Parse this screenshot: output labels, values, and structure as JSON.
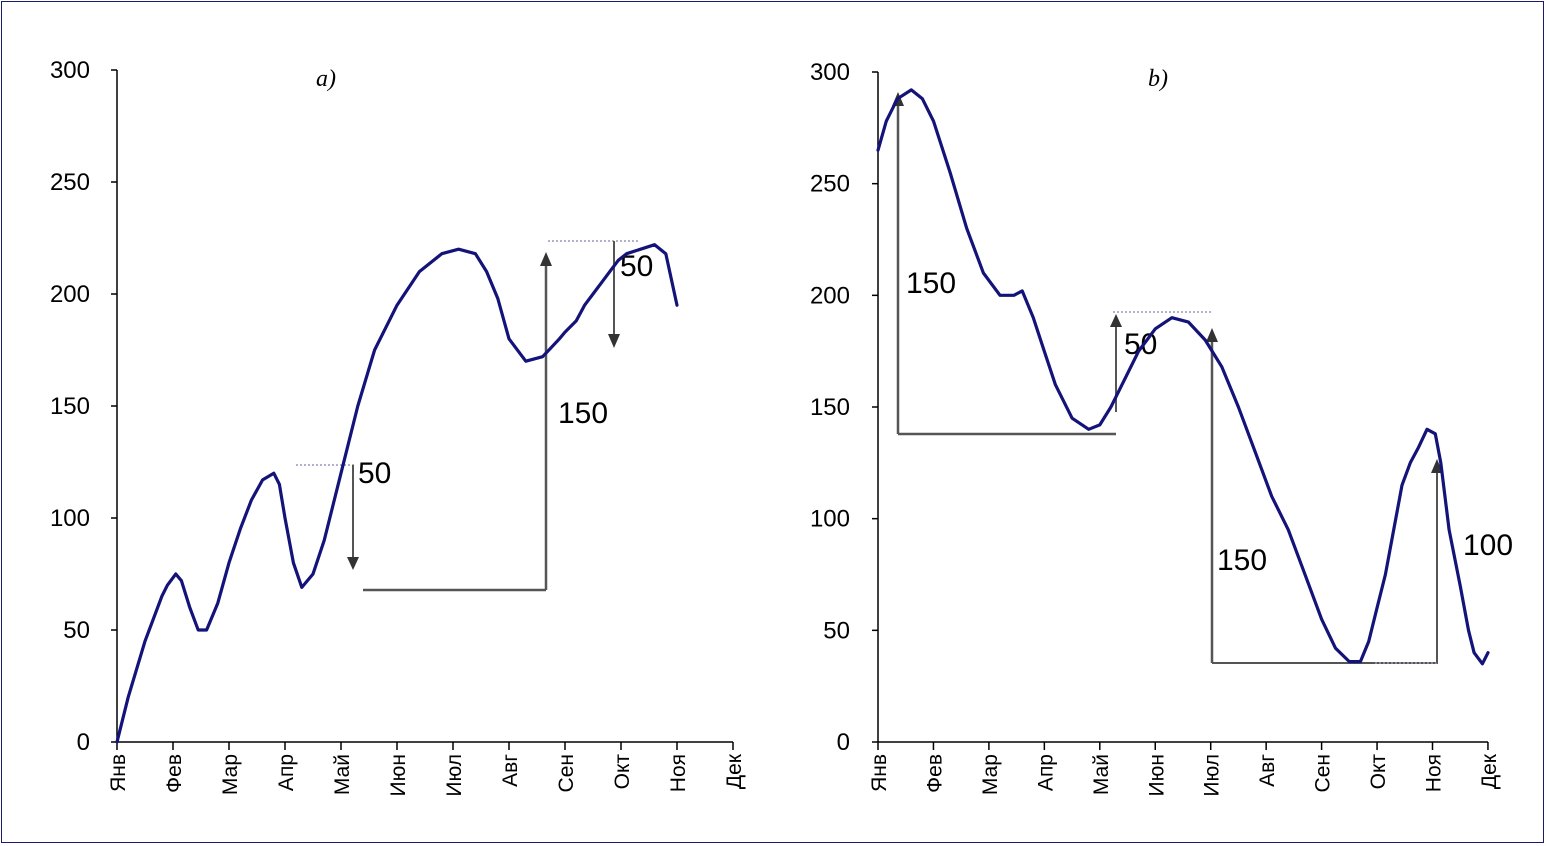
{
  "colors": {
    "line": "#13137a",
    "annotation": "#555555",
    "guide": "#9999bb",
    "frame": "#1a1a6e"
  },
  "chart_data": [
    {
      "type": "line",
      "title": "a)",
      "xlabel": "",
      "ylabel": "",
      "categories": [
        "Янв",
        "Фев",
        "Мар",
        "Апр",
        "Май",
        "Июн",
        "Июл",
        "Авг",
        "Сен",
        "Окт",
        "Ноя",
        "Дек"
      ],
      "ylim": [
        0,
        300
      ],
      "yticks": [
        "0",
        "50",
        "100",
        "150",
        "200",
        "250",
        "300"
      ],
      "grid": false,
      "series": [
        {
          "x": [
            0,
            0.2,
            0.5,
            0.8,
            0.9,
            1.05,
            1.15,
            1.3,
            1.45,
            1.6,
            1.8,
            2.0,
            2.2,
            2.4,
            2.6,
            2.8,
            2.9,
            3.0,
            3.15,
            3.3,
            3.5,
            3.7,
            4.0,
            4.3,
            4.6,
            5.0,
            5.4,
            5.8,
            6.1,
            6.4,
            6.6,
            6.8,
            7.0,
            7.3,
            7.6,
            7.75,
            7.9,
            8.0,
            8.2,
            8.35,
            8.5,
            8.65,
            8.8,
            8.95,
            9.1,
            9.35,
            9.6,
            9.8,
            10.0
          ],
          "values": [
            0,
            20,
            45,
            65,
            70,
            75,
            72,
            60,
            50,
            50,
            62,
            80,
            95,
            108,
            117,
            120,
            115,
            100,
            80,
            69,
            75,
            90,
            120,
            150,
            175,
            195,
            210,
            218,
            220,
            218,
            210,
            198,
            180,
            170,
            172,
            176,
            180,
            183,
            188,
            195,
            200,
            205,
            210,
            215,
            218,
            220,
            222,
            218,
            195
          ]
        }
      ],
      "annotations": [
        "50",
        "150",
        "50"
      ]
    },
    {
      "type": "line",
      "title": "b)",
      "xlabel": "",
      "ylabel": "",
      "categories": [
        "Янв",
        "Фев",
        "Мар",
        "Апр",
        "Май",
        "Июн",
        "Июл",
        "Авг",
        "Сен",
        "Окт",
        "Ноя",
        "Дек"
      ],
      "ylim": [
        0,
        300
      ],
      "yticks": [
        "0",
        "50",
        "100",
        "150",
        "200",
        "250",
        "300"
      ],
      "grid": false,
      "series": [
        {
          "x": [
            0,
            0.15,
            0.35,
            0.6,
            0.8,
            1.0,
            1.3,
            1.6,
            1.9,
            2.2,
            2.45,
            2.6,
            2.8,
            3.0,
            3.2,
            3.5,
            3.8,
            4.0,
            4.2,
            4.4,
            4.7,
            5.0,
            5.3,
            5.6,
            5.9,
            6.2,
            6.5,
            6.8,
            7.1,
            7.4,
            7.7,
            8.0,
            8.25,
            8.5,
            8.7,
            8.85,
            9.0,
            9.15,
            9.3,
            9.45,
            9.6,
            9.75,
            9.9,
            10.05,
            10.15,
            10.3,
            10.5,
            10.65,
            10.75,
            10.9,
            11.0
          ],
          "values": [
            265,
            278,
            288,
            292,
            288,
            278,
            255,
            230,
            210,
            200,
            200,
            202,
            190,
            175,
            160,
            145,
            140,
            142,
            150,
            160,
            175,
            185,
            190,
            188,
            180,
            168,
            150,
            130,
            110,
            95,
            75,
            55,
            42,
            36,
            36,
            45,
            60,
            75,
            95,
            115,
            125,
            132,
            140,
            138,
            125,
            95,
            70,
            50,
            40,
            35,
            40
          ]
        }
      ],
      "annotations": [
        "150",
        "50",
        "150",
        "100"
      ]
    }
  ]
}
